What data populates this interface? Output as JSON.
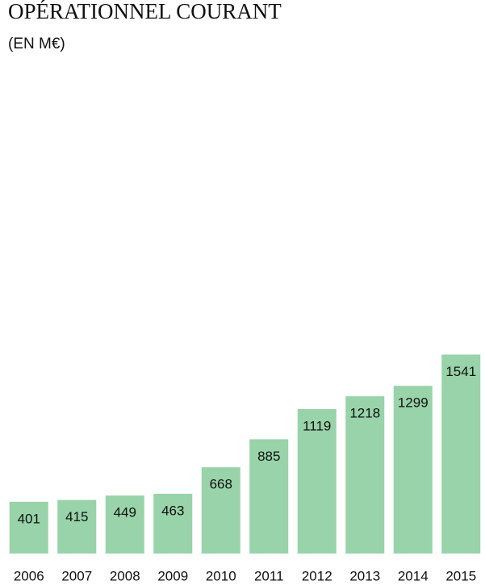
{
  "chart_data": {
    "type": "bar",
    "title": "OPÉRATIONNEL COURANT",
    "subtitle": "(EN M€)",
    "categories": [
      "2006",
      "2007",
      "2008",
      "2009",
      "2010",
      "2011",
      "2012",
      "2013",
      "2014",
      "2015"
    ],
    "values": [
      401,
      415,
      449,
      463,
      668,
      885,
      1119,
      1218,
      1299,
      1541
    ],
    "color": "#98d3a9",
    "ylim": [
      0,
      1600
    ]
  }
}
